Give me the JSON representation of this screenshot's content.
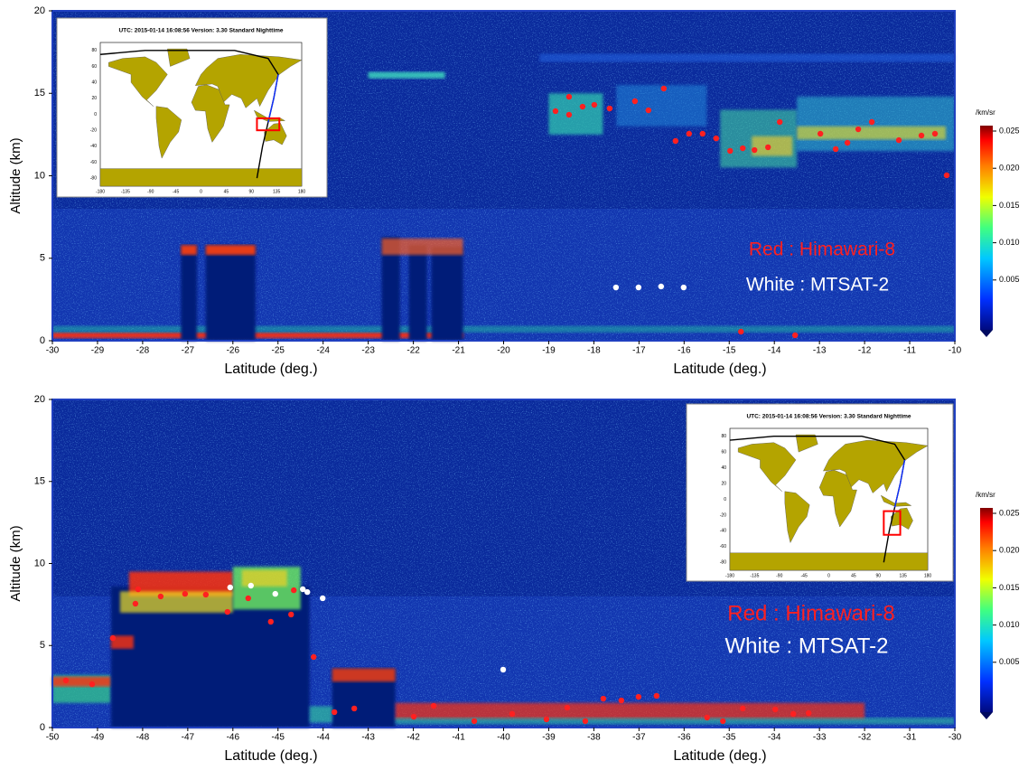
{
  "chart_data": [
    {
      "type": "scatter",
      "xlabel": "Latitude (deg.)",
      "ylabel": "Altitude (km)",
      "xlim": [
        -30,
        -10
      ],
      "ylim": [
        0,
        20
      ],
      "xticks": [
        -30,
        -29,
        -28,
        -27,
        -26,
        -25,
        -24,
        -23,
        -22,
        -21,
        -20,
        -19,
        -18,
        -17,
        -16,
        -15,
        -14,
        -13,
        -12,
        -11,
        -10
      ],
      "yticks": [
        0,
        5,
        10,
        15,
        20
      ],
      "colorbar": {
        "label": "/km/sr",
        "lim": [
          0,
          0.025
        ],
        "ticks": [
          0.005,
          {
            "value": 0.01,
            "label": "0.010"
          },
          0.015,
          {
            "value": 0.02,
            "label": "0.020"
          },
          0.025
        ]
      },
      "inset": {
        "title": "UTC: 2015-01-14  16:08:56    Version: 3.30  Standard    Nighttime",
        "xticks": [
          -180,
          -135,
          -90,
          -45,
          0,
          45,
          90,
          135,
          180
        ],
        "yticks": [
          -80,
          -60,
          -40,
          -20,
          0,
          20,
          40,
          60,
          80
        ]
      },
      "series": [
        {
          "name": "Red : Himawari-8",
          "color": "#ff2020",
          "x": [
            -18.85,
            -18.55,
            -18.55,
            -18.25,
            -17.99,
            -17.65,
            -17.09,
            -16.79,
            -16.45,
            -16.19,
            -15.89,
            -15.59,
            -15.29,
            -14.98,
            -14.7,
            -14.44,
            -14.14,
            -13.88,
            -12.98,
            -12.64,
            -12.38,
            -12.14,
            -11.84,
            -11.24,
            -10.74,
            -10.44,
            -10.18,
            -14.74,
            -13.54
          ],
          "values": [
            13.92,
            14.79,
            13.7,
            14.19,
            14.3,
            14.08,
            14.52,
            13.97,
            15.29,
            12.11,
            12.55,
            12.55,
            12.27,
            11.51,
            11.67,
            11.56,
            11.73,
            13.26,
            12.55,
            11.62,
            12.0,
            12.82,
            13.26,
            12.16,
            12.44,
            12.55,
            10.03,
            0.55,
            0.33
          ]
        },
        {
          "name": "White : MTSAT-2",
          "color": "#ffffff",
          "x": [
            -17.51,
            -17.01,
            -16.51,
            -16.01
          ],
          "values": [
            3.23,
            3.23,
            3.29,
            3.23
          ]
        }
      ]
    },
    {
      "type": "scatter",
      "xlabel": "Latitude (deg.)",
      "ylabel": "Altitude (km)",
      "xlim": [
        -50,
        -30
      ],
      "ylim": [
        0,
        20
      ],
      "xticks": [
        -50,
        -49,
        -48,
        -47,
        -46,
        -45,
        -44,
        -43,
        -42,
        -41,
        -40,
        -39,
        -38,
        -37,
        -36,
        -35,
        -34,
        -33,
        -32,
        -31,
        -30
      ],
      "yticks": [
        0,
        5,
        10,
        15,
        20
      ],
      "colorbar": {
        "label": "/km/sr",
        "lim": [
          0,
          0.025
        ],
        "ticks": [
          0.005,
          {
            "value": 0.01,
            "label": "0.010"
          },
          0.015,
          {
            "value": 0.02,
            "label": "0.020"
          },
          0.025
        ]
      },
      "inset": {
        "title": "UTC: 2015-01-14  16:08:56    Version: 3.30  Standard    Nighttime",
        "xticks": [
          -180,
          -135,
          -90,
          -45,
          0,
          45,
          90,
          135,
          180
        ],
        "yticks": [
          -80,
          -60,
          -40,
          -20,
          0,
          20,
          40,
          60,
          80
        ]
      },
      "series": [
        {
          "name": "Red : Himawari-8",
          "color": "#ff2020",
          "x": [
            -49.7,
            -49.12,
            -48.66,
            -48.16,
            -48.1,
            -47.6,
            -47.06,
            -46.6,
            -46.12,
            -45.66,
            -45.16,
            -44.65,
            -44.71,
            -44.21,
            -43.75,
            -43.31,
            -41.99,
            -41.55,
            -40.65,
            -39.81,
            -39.05,
            -38.59,
            -38.19,
            -37.79,
            -37.39,
            -37.01,
            -36.61,
            -35.49,
            -35.14,
            -34.7,
            -33.98,
            -33.58,
            -33.24
          ],
          "values": [
            2.87,
            2.64,
            5.45,
            7.55,
            8.43,
            7.99,
            8.15,
            8.1,
            7.05,
            7.88,
            6.45,
            8.37,
            6.89,
            4.3,
            0.94,
            1.16,
            0.66,
            1.32,
            0.39,
            0.83,
            0.5,
            1.21,
            0.39,
            1.76,
            1.65,
            1.87,
            1.93,
            0.61,
            0.39,
            1.16,
            1.1,
            0.83,
            0.88
          ]
        },
        {
          "name": "White : MTSAT-2",
          "color": "#ffffff",
          "x": [
            -46.06,
            -45.6,
            -45.06,
            -44.45,
            -44.35,
            -44.01,
            -40.01
          ],
          "values": [
            8.54,
            8.65,
            8.15,
            8.43,
            8.26,
            7.88,
            3.53
          ]
        }
      ]
    }
  ]
}
